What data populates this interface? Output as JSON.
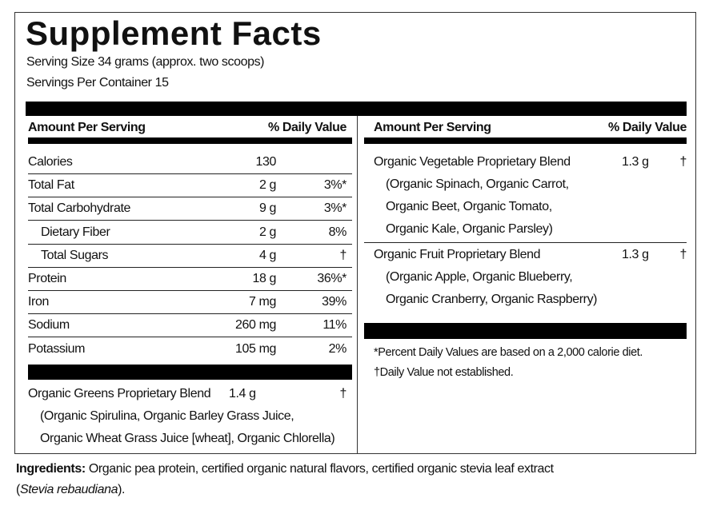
{
  "title": "Supplement Facts",
  "serving_size": "Serving Size 34 grams (approx. two scoops)",
  "servings_per_container": "Servings Per Container 15",
  "left": {
    "header": {
      "amount": "Amount Per Serving",
      "dv": "% Daily Value"
    },
    "rows": [
      {
        "name": "Calories",
        "amount": "130"
      },
      {
        "name": "Total Fat",
        "amount": "2 g",
        "dv": "3%*"
      },
      {
        "name": "Total Carbohydrate",
        "amount": "9 g",
        "dv": "3%*"
      },
      {
        "name": "Dietary Fiber",
        "amount": "2 g",
        "dv": "8%",
        "indent": true
      },
      {
        "name": "Total Sugars",
        "amount": "4 g",
        "dv": "†",
        "indent": true
      },
      {
        "name": "Protein",
        "amount": "18 g",
        "dv": "36%*"
      },
      {
        "name": "Iron",
        "amount": "7 mg",
        "dv": "39%"
      },
      {
        "name": "Sodium",
        "amount": "260 mg",
        "dv": "11%"
      },
      {
        "name": "Potassium",
        "amount": "105 mg",
        "dv": "2%"
      }
    ],
    "blends": [
      {
        "name": "Organic Greens Proprietary Blend",
        "amount": "1.4 g",
        "dv": "†",
        "lines": [
          "(Organic Spirulina, Organic Barley Grass Juice,",
          "Organic Wheat Grass Juice [wheat], Organic Chlorella)"
        ]
      }
    ]
  },
  "right": {
    "header": {
      "amount": "Amount Per Serving",
      "dv": "% Daily Value"
    },
    "blends": [
      {
        "name": "Organic Vegetable Proprietary Blend",
        "amount": "1.3 g",
        "dv": "†",
        "lines": [
          "(Organic Spinach, Organic Carrot,",
          "Organic Beet, Organic Tomato,",
          "Organic Kale, Organic Parsley)"
        ]
      },
      {
        "name": "Organic Fruit Proprietary Blend",
        "amount": "1.3 g",
        "dv": "†",
        "lines": [
          "(Organic Apple, Organic Blueberry,",
          "Organic Cranberry, Organic Raspberry)"
        ]
      }
    ],
    "footnotes": [
      "*Percent Daily Values are based on a 2,000 calorie diet.",
      "†Daily Value not established."
    ]
  },
  "ingredients": {
    "label": "Ingredients:",
    "text": "Organic pea protein, certified organic natural flavors, certified organic stevia leaf extract",
    "open": "(",
    "latin": "Stevia rebaudiana",
    "close": ")."
  }
}
